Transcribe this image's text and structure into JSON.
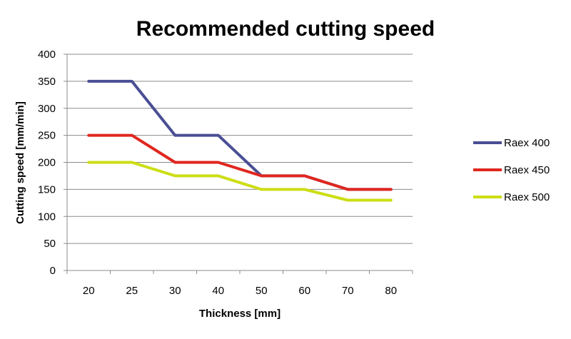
{
  "chart_data": {
    "type": "line",
    "title": "Recommended cutting speed",
    "xlabel": "Thickness [mm]",
    "ylabel": "Cutting speed [mm/min]",
    "categories": [
      "20",
      "25",
      "30",
      "40",
      "50",
      "60",
      "70",
      "80"
    ],
    "ylim": [
      0,
      400
    ],
    "yticks": [
      0,
      50,
      100,
      150,
      200,
      250,
      300,
      350,
      400
    ],
    "grid": true,
    "legend_position": "right",
    "series": [
      {
        "name": "Raex 400",
        "color": "#4a4e94",
        "values": [
          350,
          350,
          250,
          250,
          175,
          175,
          150,
          150
        ]
      },
      {
        "name": "Raex 450",
        "color": "#e0271f",
        "values": [
          250,
          250,
          200,
          200,
          175,
          175,
          150,
          150
        ]
      },
      {
        "name": "Raex 500",
        "color": "#ccde14",
        "values": [
          200,
          200,
          175,
          175,
          150,
          150,
          130,
          130
        ]
      }
    ]
  }
}
